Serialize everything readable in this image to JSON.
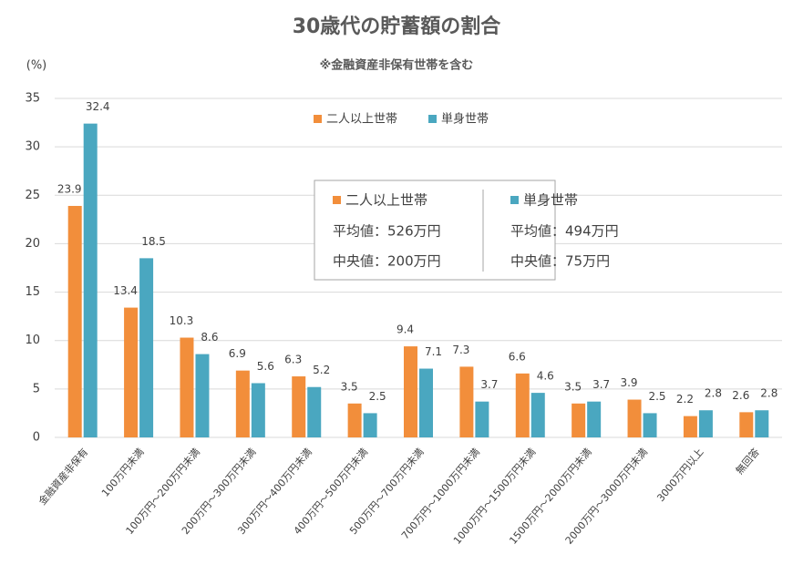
{
  "chart_data": {
    "type": "bar",
    "title": "30歳代の貯蓄額の割合",
    "subtitle": "※金融資産非保有世帯を含む",
    "y_label": "(%)",
    "categories": [
      "金融資産非保有",
      "100万円未満",
      "100万円～200万円未満",
      "200万円～300万円未満",
      "300万円～400万円未満",
      "400万円～500万円未満",
      "500万円～700万円未満",
      "700万円～1000万円未満",
      "1000万円～1500万円未満",
      "1500万円～2000万円未満",
      "2000万円～3000万円未満",
      "3000万円以上",
      "無回答"
    ],
    "series": [
      {
        "name": "二人以上世帯",
        "color": "#f28e3b",
        "values": [
          23.9,
          13.4,
          10.3,
          6.9,
          6.3,
          3.5,
          9.4,
          7.3,
          6.6,
          3.5,
          3.9,
          2.2,
          2.6
        ]
      },
      {
        "name": "単身世帯",
        "color": "#4aa7c0",
        "values": [
          32.4,
          18.5,
          8.6,
          5.6,
          5.2,
          2.5,
          7.1,
          3.7,
          4.6,
          3.7,
          2.5,
          2.8,
          2.8
        ]
      }
    ],
    "ylim": [
      0,
      35
    ],
    "yticks": [
      0,
      5,
      10,
      15,
      20,
      25,
      30,
      35
    ],
    "grid": true,
    "info_box": [
      [
        "平均値：526万円",
        "中央値：200万円"
      ],
      [
        "平均値：494万円",
        "中央値：75万円"
      ]
    ]
  }
}
